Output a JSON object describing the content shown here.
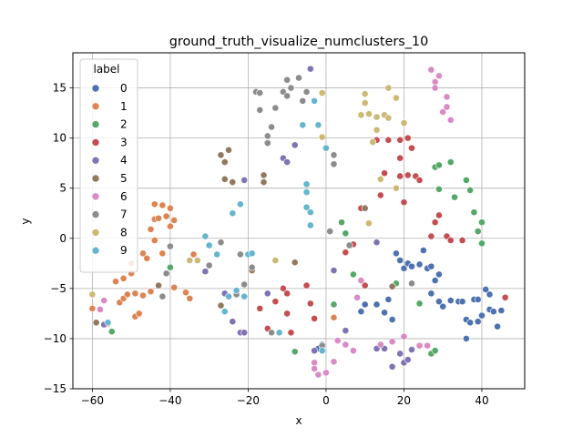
{
  "chart_data": {
    "type": "scatter",
    "title": "ground_truth_visualize_numclusters_10",
    "xlabel": "x",
    "ylabel": "y",
    "xlim": [
      -65,
      51
    ],
    "ylim": [
      -15,
      18.5
    ],
    "xticks": [
      -60,
      -40,
      -20,
      0,
      20,
      40
    ],
    "yticks": [
      -15,
      -10,
      -5,
      0,
      5,
      10,
      15
    ],
    "grid": true,
    "legend": {
      "title": "label",
      "placement": "upper-left"
    },
    "series": [
      {
        "name": "0",
        "color": "#4c72b0",
        "points": [
          [
            18,
            -1.5
          ],
          [
            19,
            -2.2
          ],
          [
            20,
            -3
          ],
          [
            21,
            -2.5
          ],
          [
            22,
            -2.8
          ],
          [
            24,
            -2.6
          ],
          [
            25,
            -1.2
          ],
          [
            26,
            -3
          ],
          [
            27,
            -2.8
          ],
          [
            29,
            -3.6
          ],
          [
            28,
            -4.2
          ],
          [
            29,
            -6.3
          ],
          [
            30,
            -6.8
          ],
          [
            32,
            -6.2
          ],
          [
            34,
            -6.3
          ],
          [
            35,
            -6.3
          ],
          [
            36,
            -8.1
          ],
          [
            37,
            -8.4
          ],
          [
            38,
            -6.1
          ],
          [
            39,
            -6.1
          ],
          [
            39,
            -8.3
          ],
          [
            40,
            -7.7
          ],
          [
            41,
            -5.1
          ],
          [
            42,
            -5.6
          ],
          [
            42,
            -7.1
          ],
          [
            43,
            -7.3
          ],
          [
            44,
            -8.8
          ],
          [
            45,
            -7.2
          ],
          [
            17,
            -8.1
          ],
          [
            16,
            -6.1
          ],
          [
            15,
            -7.4
          ],
          [
            13,
            -6.6
          ],
          [
            10,
            -6.6
          ],
          [
            9,
            -7.3
          ],
          [
            -1,
            -10.6
          ],
          [
            -2,
            -11
          ],
          [
            36,
            -10
          ],
          [
            27,
            -5.5
          ]
        ]
      },
      {
        "name": "1",
        "color": "#dd8452",
        "points": [
          [
            -60,
            -7
          ],
          [
            -56,
            -8.5
          ],
          [
            -54,
            -4.3
          ],
          [
            -53,
            -6.4
          ],
          [
            -52,
            -4
          ],
          [
            -52,
            -6
          ],
          [
            -51,
            -5.6
          ],
          [
            -50,
            -3.5
          ],
          [
            -49,
            -5.5
          ],
          [
            -49,
            -7.8
          ],
          [
            -48,
            -7.5
          ],
          [
            -47,
            -1.5
          ],
          [
            -47,
            -5.7
          ],
          [
            -46,
            -2
          ],
          [
            -45,
            0.9
          ],
          [
            -45,
            -5.3
          ],
          [
            -44,
            3.4
          ],
          [
            -44,
            1.9
          ],
          [
            -44,
            -0.2
          ],
          [
            -43,
            2
          ],
          [
            -42,
            3.3
          ],
          [
            -42,
            -1.5
          ],
          [
            -41,
            2.2
          ],
          [
            -40,
            3
          ],
          [
            -40,
            1.2
          ],
          [
            -39,
            1.8
          ],
          [
            -36,
            -5.4
          ],
          [
            -35,
            -6
          ],
          [
            -34,
            -1.6
          ],
          [
            -50,
            -2.5
          ],
          [
            2,
            -7.9
          ],
          [
            -39,
            -4.9
          ]
        ]
      },
      {
        "name": "2",
        "color": "#55a868",
        "points": [
          [
            -55,
            -9.3
          ],
          [
            -40,
            -2.9
          ],
          [
            -8,
            -11.3
          ],
          [
            2,
            -6.6
          ],
          [
            4,
            1.6
          ],
          [
            5,
            0.5
          ],
          [
            7,
            -3.6
          ],
          [
            9,
            3
          ],
          [
            11,
            1.5
          ],
          [
            18,
            -4.5
          ],
          [
            24,
            -6.5
          ],
          [
            27,
            -11.5
          ],
          [
            28,
            -11.2
          ],
          [
            28,
            7.1
          ],
          [
            29,
            7.3
          ],
          [
            29,
            4.9
          ],
          [
            32,
            7.6
          ],
          [
            33,
            4.1
          ],
          [
            36,
            5.8
          ],
          [
            37,
            4.8
          ],
          [
            38,
            2.6
          ],
          [
            39,
            0.7
          ],
          [
            40,
            1.6
          ],
          [
            40,
            -0.5
          ]
        ]
      },
      {
        "name": "3",
        "color": "#c44e52",
        "points": [
          [
            -17,
            -7
          ],
          [
            -15,
            -9
          ],
          [
            -13,
            -6.3
          ],
          [
            -11,
            -5
          ],
          [
            -10,
            -5.5
          ],
          [
            -10,
            -7.5
          ],
          [
            -9,
            -9.4
          ],
          [
            -5,
            -4.7
          ],
          [
            -4,
            -6.5
          ],
          [
            -3,
            -8
          ],
          [
            5,
            -1.4
          ],
          [
            7,
            -0.6
          ],
          [
            9,
            3
          ],
          [
            10,
            -4.7
          ],
          [
            13,
            9.8
          ],
          [
            14,
            4.3
          ],
          [
            15,
            6.5
          ],
          [
            16,
            9.8
          ],
          [
            19,
            9.8
          ],
          [
            19,
            6.2
          ],
          [
            19,
            8
          ],
          [
            20,
            3.6
          ],
          [
            21,
            6.3
          ],
          [
            21,
            10
          ],
          [
            22,
            9
          ],
          [
            23,
            6.2
          ],
          [
            27,
            0.2
          ],
          [
            28,
            1.6
          ],
          [
            29,
            2.3
          ],
          [
            31,
            0.2
          ],
          [
            32,
            -0.2
          ],
          [
            35,
            -0.2
          ],
          [
            46,
            -5.9
          ],
          [
            24,
            5.8
          ]
        ]
      },
      {
        "name": "4",
        "color": "#8172b3",
        "points": [
          [
            -57,
            -8.6
          ],
          [
            -31,
            -3.3
          ],
          [
            -26,
            -5.5
          ],
          [
            -24,
            -8.3
          ],
          [
            -22,
            -9.4
          ],
          [
            -21,
            -9.4
          ],
          [
            -21,
            5.8
          ],
          [
            -15,
            -5.5
          ],
          [
            -11,
            8
          ],
          [
            -10,
            7.6
          ],
          [
            -8,
            9.3
          ],
          [
            -4,
            16.9
          ],
          [
            -3,
            -11.2
          ],
          [
            2,
            -3.2
          ],
          [
            5,
            -9.2
          ],
          [
            13,
            -11
          ],
          [
            15,
            -11
          ],
          [
            17,
            -12.8
          ],
          [
            19,
            -11.5
          ],
          [
            20,
            -12.4
          ],
          [
            22,
            -11.1
          ],
          [
            21,
            -12.1
          ],
          [
            13,
            -0.4
          ]
        ]
      },
      {
        "name": "5",
        "color": "#937860",
        "points": [
          [
            -59,
            -8.4
          ],
          [
            -43,
            -4.7
          ],
          [
            -27,
            -6.7
          ],
          [
            -27,
            8.3
          ],
          [
            -26,
            5.9
          ],
          [
            -26,
            7.6
          ],
          [
            -25,
            8.8
          ],
          [
            -24,
            5.6
          ],
          [
            -19,
            -3.2
          ],
          [
            -16,
            5.6
          ],
          [
            -16,
            6.3
          ],
          [
            -8,
            -2.4
          ],
          [
            10,
            3
          ],
          [
            17,
            -4.8
          ]
        ]
      },
      {
        "name": "6",
        "color": "#da8bc3",
        "points": [
          [
            -58,
            -7.1
          ],
          [
            -57,
            -6.2
          ],
          [
            -3,
            -12.4
          ],
          [
            -2,
            -13.6
          ],
          [
            -3,
            -13
          ],
          [
            0,
            -13.4
          ],
          [
            2,
            -12.3
          ],
          [
            3,
            -10.2
          ],
          [
            5,
            -10.6
          ],
          [
            7,
            -11.2
          ],
          [
            8,
            -5.9
          ],
          [
            9,
            -4.2
          ],
          [
            14,
            -10.6
          ],
          [
            17,
            -10.3
          ],
          [
            20,
            -9.8
          ],
          [
            24,
            -10.7
          ],
          [
            26,
            -10.7
          ],
          [
            27,
            16.8
          ],
          [
            28,
            15.6
          ],
          [
            28,
            15
          ],
          [
            29,
            16.2
          ],
          [
            30,
            12.6
          ],
          [
            31,
            14.1
          ],
          [
            31,
            13.1
          ],
          [
            32,
            11.8
          ]
        ]
      },
      {
        "name": "7",
        "color": "#8c8c8c",
        "points": [
          [
            -42,
            -5.8
          ],
          [
            -41,
            -3.5
          ],
          [
            -40,
            -0.8
          ],
          [
            -30,
            -2.7
          ],
          [
            -27,
            -0.4
          ],
          [
            -23,
            -5.6
          ],
          [
            -22,
            -1.6
          ],
          [
            -21,
            -4.6
          ],
          [
            -19,
            -2.9
          ],
          [
            -18,
            14.6
          ],
          [
            -17,
            12.8
          ],
          [
            -17,
            14.5
          ],
          [
            -15,
            9.5
          ],
          [
            -15,
            10.2
          ],
          [
            -14,
            11.1
          ],
          [
            -14,
            -9.4
          ],
          [
            -13,
            13
          ],
          [
            -11,
            14.6
          ],
          [
            -10,
            14.2
          ],
          [
            -10,
            15.8
          ],
          [
            -9,
            15
          ],
          [
            -7,
            16
          ],
          [
            -6,
            13.7
          ],
          [
            -5,
            14.6
          ],
          [
            -1,
            -10.7
          ],
          [
            1,
            0.7
          ],
          [
            2,
            8.3
          ],
          [
            2,
            7.4
          ],
          [
            6,
            -0.7
          ],
          [
            22,
            -4.5
          ]
        ]
      },
      {
        "name": "8",
        "color": "#ccb974",
        "points": [
          [
            -60,
            -5.6
          ],
          [
            -33,
            -2.2
          ],
          [
            -13,
            -2.2
          ],
          [
            -1,
            14.5
          ],
          [
            -1,
            10.1
          ],
          [
            9,
            12.3
          ],
          [
            10,
            14.4
          ],
          [
            10,
            13.5
          ],
          [
            11,
            12.4
          ],
          [
            11,
            1.5
          ],
          [
            12,
            9.6
          ],
          [
            13,
            10.8
          ],
          [
            13,
            12.1
          ],
          [
            14,
            5.9
          ],
          [
            15,
            12.3
          ],
          [
            16,
            15
          ],
          [
            16,
            12
          ],
          [
            18,
            14
          ],
          [
            18,
            5
          ],
          [
            20,
            11.5
          ],
          [
            -35,
            -2.2
          ]
        ]
      },
      {
        "name": "9",
        "color": "#64b5cd",
        "points": [
          [
            -56,
            -8.4
          ],
          [
            -31,
            0.2
          ],
          [
            -30,
            -0.7
          ],
          [
            -28,
            -1.6
          ],
          [
            -26,
            -7.3
          ],
          [
            -25,
            -5.8
          ],
          [
            -24,
            2.5
          ],
          [
            -23,
            -5.2
          ],
          [
            -22,
            3.4
          ],
          [
            -21,
            -5.8
          ],
          [
            -20,
            -1.6
          ],
          [
            -19,
            -1.5
          ],
          [
            -12,
            -9.4
          ],
          [
            -6,
            11.3
          ],
          [
            -5,
            5.4
          ],
          [
            -5,
            3.1
          ],
          [
            -5,
            4.6
          ],
          [
            -4,
            1.3
          ],
          [
            -4,
            2.6
          ],
          [
            -3,
            13.7
          ],
          [
            -2,
            11.3
          ],
          [
            0,
            9
          ],
          [
            -1,
            -11.2
          ]
        ]
      }
    ]
  }
}
